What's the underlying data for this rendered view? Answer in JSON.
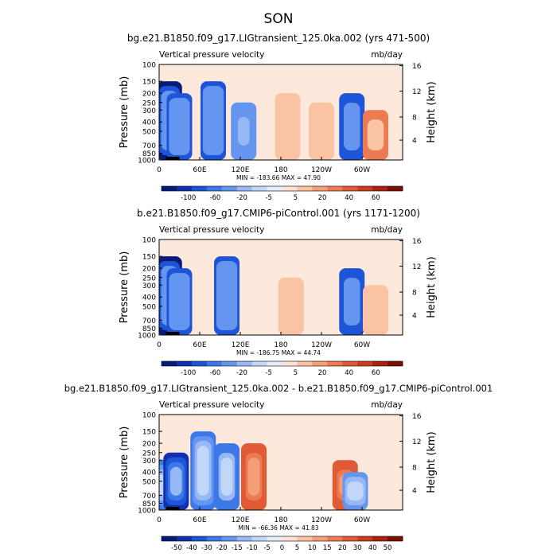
{
  "figure_title": "SON",
  "chart_data": [
    {
      "type": "heatmap",
      "title": "bg.e21.B1850.f09_g17.LIGtransient_125.0ka.002 (yrs 471-500)",
      "subtitle_left": "Vertical pressure velocity",
      "subtitle_right": "mb/day",
      "ylabel": "Pressure (mb)",
      "ylabel_right": "Height (km)",
      "x_ticks": [
        "0",
        "60E",
        "120E",
        "180",
        "120W",
        "60W"
      ],
      "x_tick_values": [
        0,
        60,
        120,
        180,
        240,
        300
      ],
      "xlim": [
        0,
        360
      ],
      "y_ticks": [
        "100",
        "150",
        "200",
        "250",
        "300",
        "400",
        "500",
        "700",
        "850",
        "1000"
      ],
      "y_tick_values": [
        100,
        150,
        200,
        250,
        300,
        400,
        500,
        700,
        850,
        1000
      ],
      "ylim": [
        1000,
        100
      ],
      "y_scale": "log",
      "right_ticks": [
        "16",
        "12",
        "8",
        "4"
      ],
      "right_tick_values": [
        16,
        12,
        8,
        4
      ],
      "stats": "MIN = -183.66   MAX =  47.90",
      "colorbar_labels": [
        "-100",
        "-60",
        "-20",
        "-5",
        "5",
        "20",
        "40",
        "60"
      ],
      "colorbar_colors": [
        "#0a1a78",
        "#1030b0",
        "#1e55d8",
        "#3c78e8",
        "#6496f0",
        "#96b8f5",
        "#c2d6f8",
        "#e2ecfb",
        "#fde3d2",
        "#fac3a4",
        "#f59f78",
        "#ec7a52",
        "#e05a36",
        "#cc3c1c",
        "#a8220e",
        "#7a1000"
      ],
      "features": [
        {
          "lon": 15,
          "p_top": 150,
          "value": -100
        },
        {
          "lon": 30,
          "p_top": 200,
          "value": -60
        },
        {
          "lon": 80,
          "p_top": 150,
          "value": -60
        },
        {
          "lon": 125,
          "p_top": 250,
          "value": -40
        },
        {
          "lon": 190,
          "p_top": 200,
          "value": 15
        },
        {
          "lon": 240,
          "p_top": 250,
          "value": 20
        },
        {
          "lon": 285,
          "p_top": 200,
          "value": -80
        },
        {
          "lon": 320,
          "p_top": 300,
          "value": 30
        }
      ]
    },
    {
      "type": "heatmap",
      "title": "b.e21.B1850.f09_g17.CMIP6-piControl.001 (yrs 1171-1200)",
      "subtitle_left": "Vertical pressure velocity",
      "subtitle_right": "mb/day",
      "ylabel": "Pressure (mb)",
      "ylabel_right": "Height (km)",
      "x_ticks": [
        "0",
        "60E",
        "120E",
        "180",
        "120W",
        "60W"
      ],
      "x_tick_values": [
        0,
        60,
        120,
        180,
        240,
        300
      ],
      "xlim": [
        0,
        360
      ],
      "y_ticks": [
        "100",
        "150",
        "200",
        "250",
        "300",
        "400",
        "500",
        "700",
        "850",
        "1000"
      ],
      "y_tick_values": [
        100,
        150,
        200,
        250,
        300,
        400,
        500,
        700,
        850,
        1000
      ],
      "ylim": [
        1000,
        100
      ],
      "y_scale": "log",
      "right_ticks": [
        "16",
        "12",
        "8",
        "4"
      ],
      "right_tick_values": [
        16,
        12,
        8,
        4
      ],
      "stats": "MIN = -186.75   MAX =  44.74",
      "colorbar_labels": [
        "-100",
        "-60",
        "-20",
        "-5",
        "5",
        "20",
        "40",
        "60"
      ],
      "colorbar_colors": [
        "#0a1a78",
        "#1030b0",
        "#1e55d8",
        "#3c78e8",
        "#6496f0",
        "#96b8f5",
        "#c2d6f8",
        "#e2ecfb",
        "#fde3d2",
        "#fac3a4",
        "#f59f78",
        "#ec7a52",
        "#e05a36",
        "#cc3c1c",
        "#a8220e",
        "#7a1000"
      ],
      "features": [
        {
          "lon": 15,
          "p_top": 150,
          "value": -100
        },
        {
          "lon": 30,
          "p_top": 200,
          "value": -60
        },
        {
          "lon": 100,
          "p_top": 150,
          "value": -60
        },
        {
          "lon": 195,
          "p_top": 250,
          "value": 20
        },
        {
          "lon": 285,
          "p_top": 200,
          "value": -80
        },
        {
          "lon": 320,
          "p_top": 300,
          "value": 20
        }
      ]
    },
    {
      "type": "heatmap",
      "title": "bg.e21.B1850.f09_g17.LIGtransient_125.0ka.002 - b.e21.B1850.f09_g17.CMIP6-piControl.001",
      "subtitle_left": "Vertical pressure velocity",
      "subtitle_right": "mb/day",
      "ylabel": "Pressure (mb)",
      "ylabel_right": "Height (km)",
      "x_ticks": [
        "0",
        "60E",
        "120E",
        "180",
        "120W",
        "60W"
      ],
      "x_tick_values": [
        0,
        60,
        120,
        180,
        240,
        300
      ],
      "xlim": [
        0,
        360
      ],
      "y_ticks": [
        "100",
        "150",
        "200",
        "250",
        "300",
        "400",
        "500",
        "700",
        "850",
        "1000"
      ],
      "y_tick_values": [
        100,
        150,
        200,
        250,
        300,
        400,
        500,
        700,
        850,
        1000
      ],
      "ylim": [
        1000,
        100
      ],
      "y_scale": "log",
      "right_ticks": [
        "16",
        "12",
        "8",
        "4"
      ],
      "right_tick_values": [
        16,
        12,
        8,
        4
      ],
      "stats": "MIN = -66.36   MAX =  41.83",
      "colorbar_labels": [
        "-50",
        "-40",
        "-30",
        "-20",
        "-15",
        "-10",
        "-5",
        "0",
        "5",
        "10",
        "15",
        "20",
        "30",
        "40",
        "50"
      ],
      "colorbar_colors": [
        "#0a1a78",
        "#1030b0",
        "#1e55d8",
        "#3c78e8",
        "#6496f0",
        "#96b8f5",
        "#c2d6f8",
        "#e2ecfb",
        "#fde3d2",
        "#fac3a4",
        "#f59f78",
        "#ec7a52",
        "#e05a36",
        "#cc3c1c",
        "#a8220e",
        "#7a1000"
      ],
      "features": [
        {
          "lon": 5,
          "p_top": 300,
          "value": -20
        },
        {
          "lon": 25,
          "p_top": 250,
          "value": -40
        },
        {
          "lon": 65,
          "p_top": 150,
          "value": -20
        },
        {
          "lon": 100,
          "p_top": 200,
          "value": -25
        },
        {
          "lon": 140,
          "p_top": 200,
          "value": 30
        },
        {
          "lon": 275,
          "p_top": 300,
          "value": 30
        },
        {
          "lon": 290,
          "p_top": 400,
          "value": -15
        }
      ]
    }
  ]
}
